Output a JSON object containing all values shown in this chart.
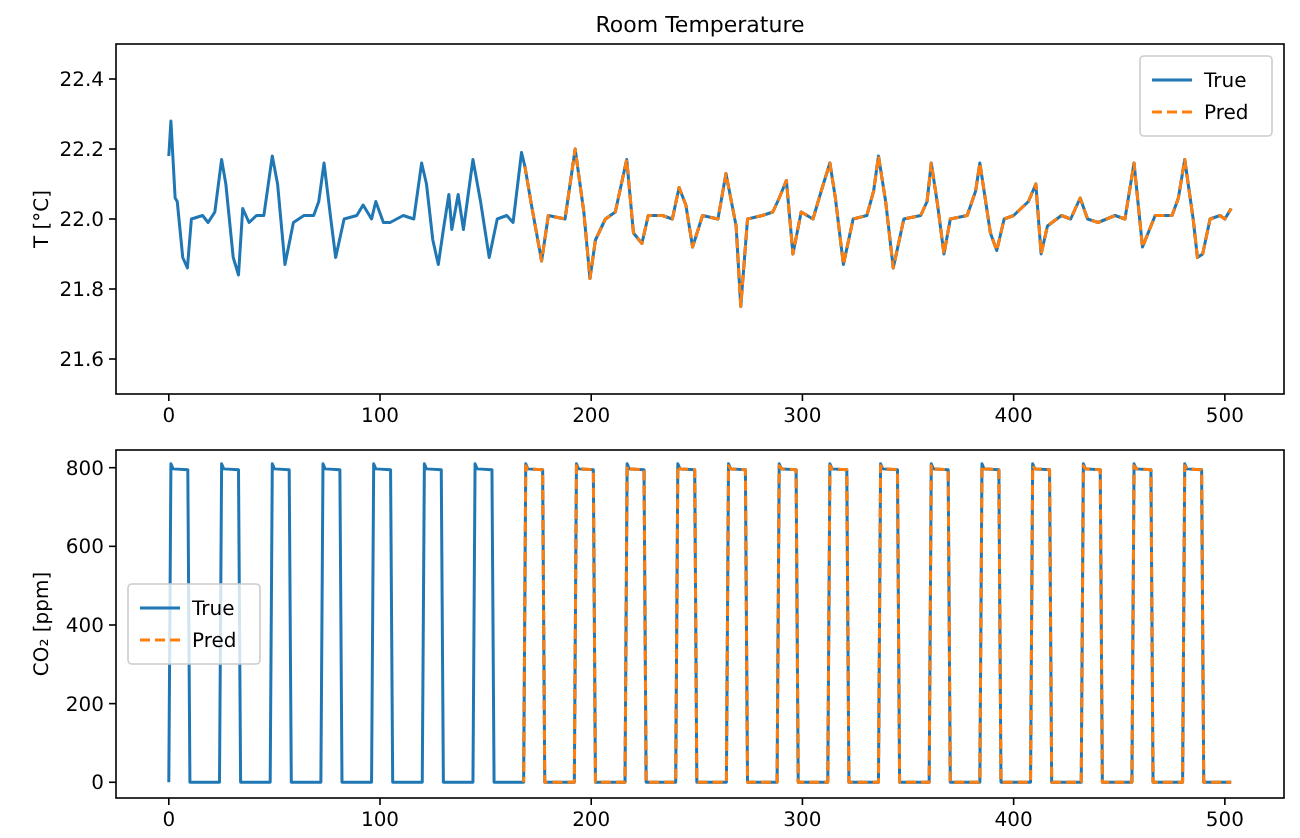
{
  "chart_data": [
    {
      "type": "line",
      "title": "Room Temperature",
      "ylabel": "T [°C]",
      "xlim": [
        -25,
        528
      ],
      "xticks": [
        0,
        100,
        200,
        300,
        400,
        500
      ],
      "ylim": [
        21.5,
        22.5
      ],
      "yticks": [
        21.6,
        21.8,
        {
          "value": 22,
          "label": "22.0"
        },
        22.2,
        22.4
      ],
      "grid": false,
      "legend": "top right",
      "series": [
        {
          "name": "True",
          "color": "#1f77b4",
          "line_style": "solid",
          "x": [
            0,
            1,
            3,
            4,
            6.6,
            8.8,
            10.7,
            16,
            18.6,
            21.8,
            25,
            27,
            30.5,
            33,
            35,
            38,
            41.5,
            45,
            49,
            51.5,
            55,
            59,
            64,
            68.6,
            71,
            73.5,
            76.7,
            79,
            83,
            89,
            92,
            96,
            98,
            101.6,
            104.8,
            111,
            116,
            119.7,
            122,
            125,
            127.6,
            130,
            132.6,
            134,
            137,
            139.5,
            144,
            147.6,
            151.7,
            155.5,
            160,
            163,
            167,
            168.6,
            171.7,
            176.5,
            179.7,
            187.6,
            192.4,
            196.5,
            199.4,
            202,
            206.7,
            211.4,
            216.8,
            220,
            224,
            227,
            233.7,
            238.4,
            241.6,
            244.8,
            248,
            252.7,
            260,
            263.8,
            268.6,
            270.8,
            274,
            281,
            286,
            289,
            292.4,
            295.5,
            299.4,
            305,
            308.9,
            313,
            315.6,
            319.4,
            324,
            330.5,
            333.7,
            336,
            339.4,
            343,
            348,
            356,
            359,
            361,
            364,
            367,
            370,
            378,
            382,
            384,
            387,
            389,
            392,
            395.5,
            400,
            407,
            410.5,
            413,
            416,
            422.6,
            427,
            431.5,
            435,
            440,
            448,
            452.7,
            457,
            461,
            463,
            467,
            475,
            478,
            481,
            485,
            487,
            489.5,
            493,
            497.7,
            500,
            503
          ],
          "values": [
            22.18,
            22.28,
            22.06,
            22.05,
            21.89,
            21.86,
            22.0,
            22.01,
            21.99,
            22.02,
            22.17,
            22.1,
            21.89,
            21.84,
            22.03,
            21.99,
            22.01,
            22.01,
            22.18,
            22.1,
            21.87,
            21.99,
            22.01,
            22.01,
            22.05,
            22.16,
            22.0,
            21.89,
            22.0,
            22.01,
            22.04,
            22.0,
            22.05,
            21.99,
            21.99,
            22.01,
            22.0,
            22.16,
            22.1,
            21.94,
            21.87,
            21.97,
            22.07,
            21.97,
            22.07,
            21.97,
            22.17,
            22.05,
            21.89,
            22.0,
            22.01,
            21.99,
            22.19,
            22.15,
            22.04,
            21.88,
            22.01,
            22.0,
            22.2,
            22.02,
            21.83,
            21.94,
            22.0,
            22.02,
            22.17,
            21.96,
            21.93,
            22.01,
            22.01,
            22.0,
            22.09,
            22.04,
            21.92,
            22.01,
            22.0,
            22.13,
            21.98,
            21.75,
            22.0,
            22.01,
            22.02,
            22.06,
            22.11,
            21.9,
            22.02,
            22.0,
            22.08,
            22.16,
            22.06,
            21.87,
            22.0,
            22.01,
            22.08,
            22.18,
            22.05,
            21.86,
            22.0,
            22.01,
            22.05,
            22.16,
            22.04,
            21.9,
            22.0,
            22.01,
            22.08,
            22.16,
            22.04,
            21.96,
            21.91,
            22.0,
            22.01,
            22.05,
            22.1,
            21.9,
            21.98,
            22.01,
            22.0,
            22.06,
            22.0,
            21.99,
            22.01,
            22.0,
            22.16,
            21.92,
            21.95,
            22.01,
            22.01,
            22.06,
            22.17,
            22.0,
            21.89,
            21.9,
            22.0,
            22.01,
            22.0,
            22.03
          ]
        },
        {
          "name": "Pred",
          "color": "#ff7f0e",
          "line_style": "dashed",
          "x": [
            168.6,
            171.7,
            176.5,
            179.7,
            187.6,
            192.4,
            196.5,
            199.4,
            202,
            206.7,
            211.4,
            216.8,
            220,
            224,
            227,
            233.7,
            238.4,
            241.6,
            244.8,
            248,
            252.7,
            260,
            263.8,
            268.6,
            270.8,
            274,
            281,
            286,
            289,
            292.4,
            295.5,
            299.4,
            305,
            308.9,
            313,
            315.6,
            319.4,
            324,
            330.5,
            333.7,
            336,
            339.4,
            343,
            348,
            356,
            359,
            361,
            364,
            367,
            370,
            378,
            382,
            384,
            387,
            389,
            392,
            395.5,
            400,
            407,
            410.5,
            413,
            416,
            422.6,
            427,
            431.5,
            435,
            440,
            448,
            452.7,
            457,
            461,
            463,
            467,
            475,
            478,
            481,
            485,
            487,
            489.5,
            493,
            497.7,
            500,
            503
          ],
          "values": [
            22.15,
            22.04,
            21.88,
            22.01,
            22.0,
            22.2,
            22.02,
            21.83,
            21.94,
            22.0,
            22.02,
            22.17,
            21.96,
            21.93,
            22.01,
            22.01,
            22.0,
            22.09,
            22.04,
            21.92,
            22.01,
            22.0,
            22.13,
            21.98,
            21.75,
            22.0,
            22.01,
            22.02,
            22.06,
            22.11,
            21.9,
            22.02,
            22.0,
            22.08,
            22.16,
            22.06,
            21.87,
            22.0,
            22.01,
            22.08,
            22.18,
            22.05,
            21.86,
            22.0,
            22.01,
            22.05,
            22.16,
            22.04,
            21.9,
            22.0,
            22.01,
            22.08,
            22.16,
            22.04,
            21.96,
            21.91,
            22.0,
            22.01,
            22.05,
            22.1,
            21.9,
            21.98,
            22.01,
            22.0,
            22.06,
            22.0,
            21.99,
            22.01,
            22.0,
            22.16,
            21.92,
            21.95,
            22.01,
            22.01,
            22.06,
            22.17,
            22.0,
            21.89,
            21.9,
            22.0,
            22.01,
            22.0,
            22.03
          ]
        }
      ]
    },
    {
      "type": "line",
      "ylabel": "CO₂ [ppm]",
      "xlim": [
        -25,
        528
      ],
      "xticks": [
        0,
        100,
        200,
        300,
        400,
        500
      ],
      "ylim": [
        -40,
        845
      ],
      "yticks": [
        0,
        200,
        400,
        600,
        800
      ],
      "grid": false,
      "legend": "left",
      "series": [
        {
          "name": "True",
          "color": "#1f77b4",
          "line_style": "solid",
          "x": [
            0,
            1,
            2,
            9,
            10,
            24,
            25,
            26,
            33,
            34,
            48,
            49,
            50,
            57,
            58,
            72,
            73,
            74,
            81,
            82,
            96,
            97,
            98,
            105,
            106,
            120,
            121,
            122,
            129,
            130,
            144,
            145,
            146,
            153,
            154,
            168,
            169,
            170,
            177,
            178,
            192,
            193,
            194,
            201,
            202,
            216,
            217,
            218,
            225,
            226,
            240,
            241,
            242,
            249,
            250,
            264,
            265,
            266,
            273,
            274,
            288,
            289,
            290,
            297,
            298,
            312,
            313,
            314,
            321,
            322,
            336,
            337,
            338,
            345,
            346,
            360,
            361,
            362,
            369,
            370,
            384,
            385,
            386,
            393,
            394,
            408,
            409,
            410,
            417,
            418,
            432,
            433,
            434,
            441,
            442,
            456,
            457,
            458,
            465,
            466,
            480,
            481,
            482,
            489,
            490,
            503
          ],
          "values": [
            0,
            810,
            797,
            795,
            0,
            0,
            810,
            797,
            795,
            0,
            0,
            810,
            797,
            795,
            0,
            0,
            810,
            797,
            795,
            0,
            0,
            810,
            797,
            795,
            0,
            0,
            810,
            797,
            795,
            0,
            0,
            810,
            797,
            795,
            0,
            0,
            810,
            797,
            795,
            0,
            0,
            810,
            797,
            795,
            0,
            0,
            810,
            797,
            795,
            0,
            0,
            810,
            797,
            795,
            0,
            0,
            810,
            797,
            795,
            0,
            0,
            810,
            797,
            795,
            0,
            0,
            810,
            797,
            795,
            0,
            0,
            810,
            797,
            795,
            0,
            0,
            810,
            797,
            795,
            0,
            0,
            810,
            797,
            795,
            0,
            0,
            810,
            797,
            795,
            0,
            0,
            810,
            797,
            795,
            0,
            0,
            810,
            797,
            795,
            0,
            0,
            810,
            797,
            795,
            0,
            0
          ]
        },
        {
          "name": "Pred",
          "color": "#ff7f0e",
          "line_style": "dashed",
          "x": [
            168,
            169,
            170,
            177,
            178,
            192,
            193,
            194,
            201,
            202,
            216,
            217,
            218,
            225,
            226,
            240,
            241,
            242,
            249,
            250,
            264,
            265,
            266,
            273,
            274,
            288,
            289,
            290,
            297,
            298,
            312,
            313,
            314,
            321,
            322,
            336,
            337,
            338,
            345,
            346,
            360,
            361,
            362,
            369,
            370,
            384,
            385,
            386,
            393,
            394,
            408,
            409,
            410,
            417,
            418,
            432,
            433,
            434,
            441,
            442,
            456,
            457,
            458,
            465,
            466,
            480,
            481,
            482,
            489,
            490,
            503
          ],
          "values": [
            0,
            805,
            797,
            795,
            0,
            0,
            805,
            797,
            795,
            0,
            0,
            805,
            797,
            795,
            0,
            0,
            805,
            797,
            795,
            0,
            0,
            805,
            797,
            795,
            0,
            0,
            805,
            797,
            795,
            0,
            0,
            805,
            797,
            795,
            0,
            0,
            805,
            797,
            795,
            0,
            0,
            805,
            797,
            795,
            0,
            0,
            805,
            797,
            795,
            0,
            0,
            805,
            797,
            795,
            0,
            0,
            805,
            797,
            795,
            0,
            0,
            805,
            797,
            795,
            0,
            0,
            805,
            797,
            795,
            0,
            0
          ]
        }
      ]
    }
  ]
}
